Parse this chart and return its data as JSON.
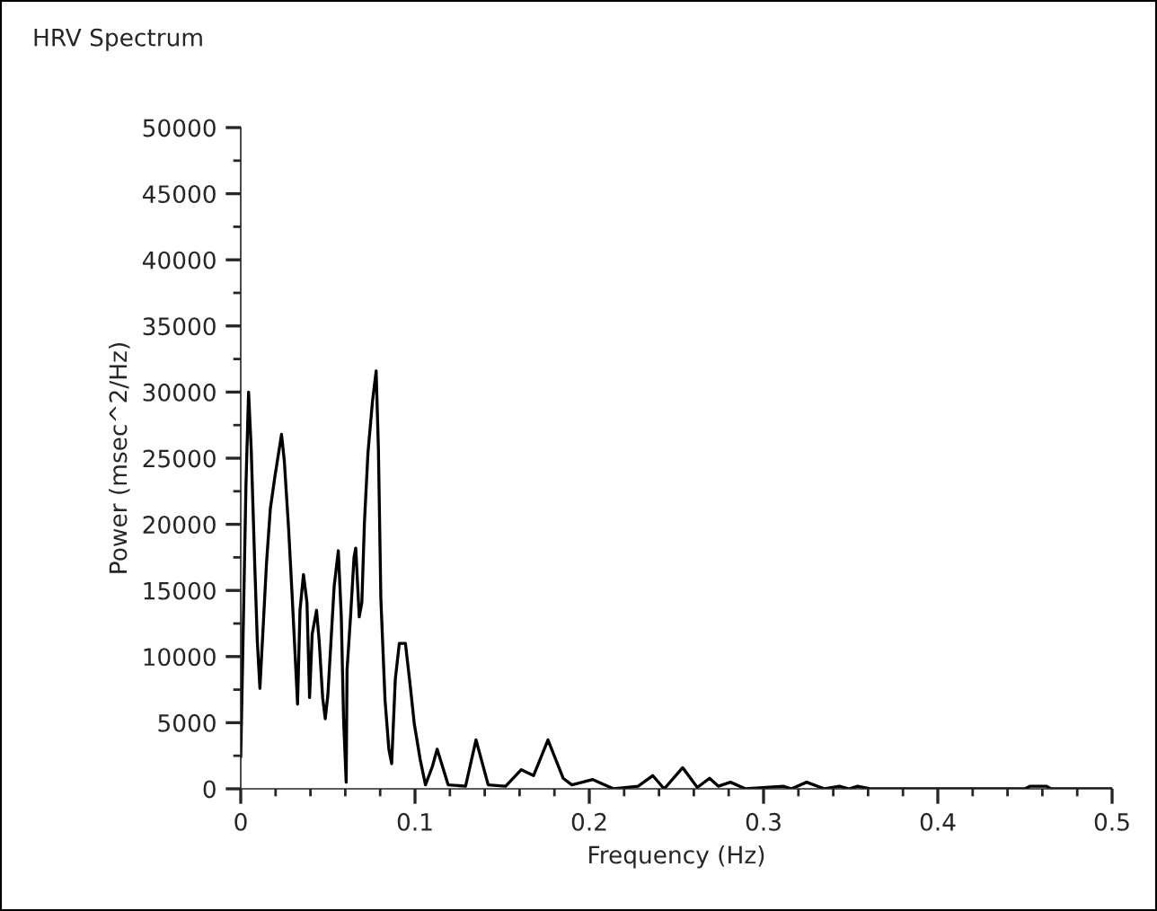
{
  "chart_data": {
    "type": "line",
    "title": "HRV Spectrum",
    "xlabel": "Frequency (Hz)",
    "ylabel": "Power (msec^2/Hz)",
    "xlim": [
      0,
      0.5
    ],
    "ylim": [
      0,
      50000
    ],
    "xticks": [
      0,
      {
        "value": 0.02,
        "label": null
      },
      {
        "value": 0.04,
        "label": null
      },
      {
        "value": 0.06,
        "label": null
      },
      {
        "value": 0.08,
        "label": null
      },
      0.1,
      {
        "value": 0.12,
        "label": null
      },
      {
        "value": 0.14,
        "label": null
      },
      {
        "value": 0.16,
        "label": null
      },
      {
        "value": 0.18,
        "label": null
      },
      0.2,
      {
        "value": 0.22,
        "label": null
      },
      {
        "value": 0.24,
        "label": null
      },
      {
        "value": 0.26,
        "label": null
      },
      {
        "value": 0.28,
        "label": null
      },
      0.3,
      {
        "value": 0.32,
        "label": null
      },
      {
        "value": 0.34,
        "label": null
      },
      {
        "value": 0.36,
        "label": null
      },
      {
        "value": 0.38,
        "label": null
      },
      0.4,
      {
        "value": 0.42,
        "label": null
      },
      {
        "value": 0.44,
        "label": null
      },
      {
        "value": 0.46,
        "label": null
      },
      {
        "value": 0.48,
        "label": null
      },
      0.5
    ],
    "yticks": [
      0,
      {
        "value": 2500,
        "label": null
      },
      5000,
      {
        "value": 7500,
        "label": null
      },
      10000,
      {
        "value": 12500,
        "label": null
      },
      15000,
      {
        "value": 17500,
        "label": null
      },
      20000,
      {
        "value": 22500,
        "label": null
      },
      25000,
      {
        "value": 27500,
        "label": null
      },
      30000,
      {
        "value": 32500,
        "label": null
      },
      35000,
      {
        "value": 37500,
        "label": null
      },
      40000,
      {
        "value": 42500,
        "label": null
      },
      45000,
      {
        "value": 47500,
        "label": null
      },
      50000
    ],
    "grid": false,
    "legend": false,
    "series": [
      {
        "color": "#000000",
        "x": [
          0,
          0.001,
          0.003,
          0.0045,
          0.006,
          0.008,
          0.0095,
          0.011,
          0.0148,
          0.017,
          0.0196,
          0.0234,
          0.025,
          0.0275,
          0.0295,
          0.0316,
          0.0326,
          0.034,
          0.036,
          0.038,
          0.0395,
          0.041,
          0.0435,
          0.045,
          0.047,
          0.0485,
          0.05,
          0.0536,
          0.056,
          0.0577,
          0.059,
          0.0605,
          0.061,
          0.063,
          0.065,
          0.066,
          0.068,
          0.0695,
          0.071,
          0.073,
          0.0756,
          0.0777,
          0.079,
          0.0804,
          0.0828,
          0.085,
          0.0866,
          0.0887,
          0.091,
          0.0945,
          0.097,
          0.0996,
          0.103,
          0.106,
          0.11,
          0.1127,
          0.119,
          0.129,
          0.135,
          0.142,
          0.152,
          0.161,
          0.168,
          0.1763,
          0.185,
          0.19,
          0.202,
          0.214,
          0.228,
          0.2364,
          0.243,
          0.2536,
          0.262,
          0.269,
          0.274,
          0.281,
          0.2897,
          0.3113,
          0.316,
          0.3247,
          0.335,
          0.3436,
          0.349,
          0.354,
          0.361,
          0.45,
          0.453,
          0.4622,
          0.465,
          0.5
        ],
        "values": [
          2400,
          9100,
          23000,
          30000,
          25700,
          17100,
          11200,
          7600,
          17100,
          21200,
          23600,
          26800,
          24800,
          19600,
          14600,
          9100,
          6400,
          13500,
          16200,
          14100,
          6900,
          11700,
          13500,
          11200,
          6900,
          5300,
          7100,
          15300,
          18000,
          13000,
          5300,
          500,
          9000,
          13000,
          17500,
          18200,
          13000,
          14100,
          20200,
          25400,
          29300,
          31600,
          25700,
          14400,
          6700,
          3000,
          1900,
          8300,
          11000,
          11000,
          8100,
          4900,
          2200,
          300,
          1700,
          3000,
          300,
          200,
          3700,
          300,
          200,
          1450,
          1000,
          3700,
          800,
          300,
          700,
          0,
          200,
          1000,
          0,
          1600,
          100,
          800,
          200,
          500,
          0,
          200,
          0,
          500,
          0,
          200,
          0,
          200,
          0,
          0,
          200,
          200,
          0,
          0
        ]
      }
    ]
  }
}
